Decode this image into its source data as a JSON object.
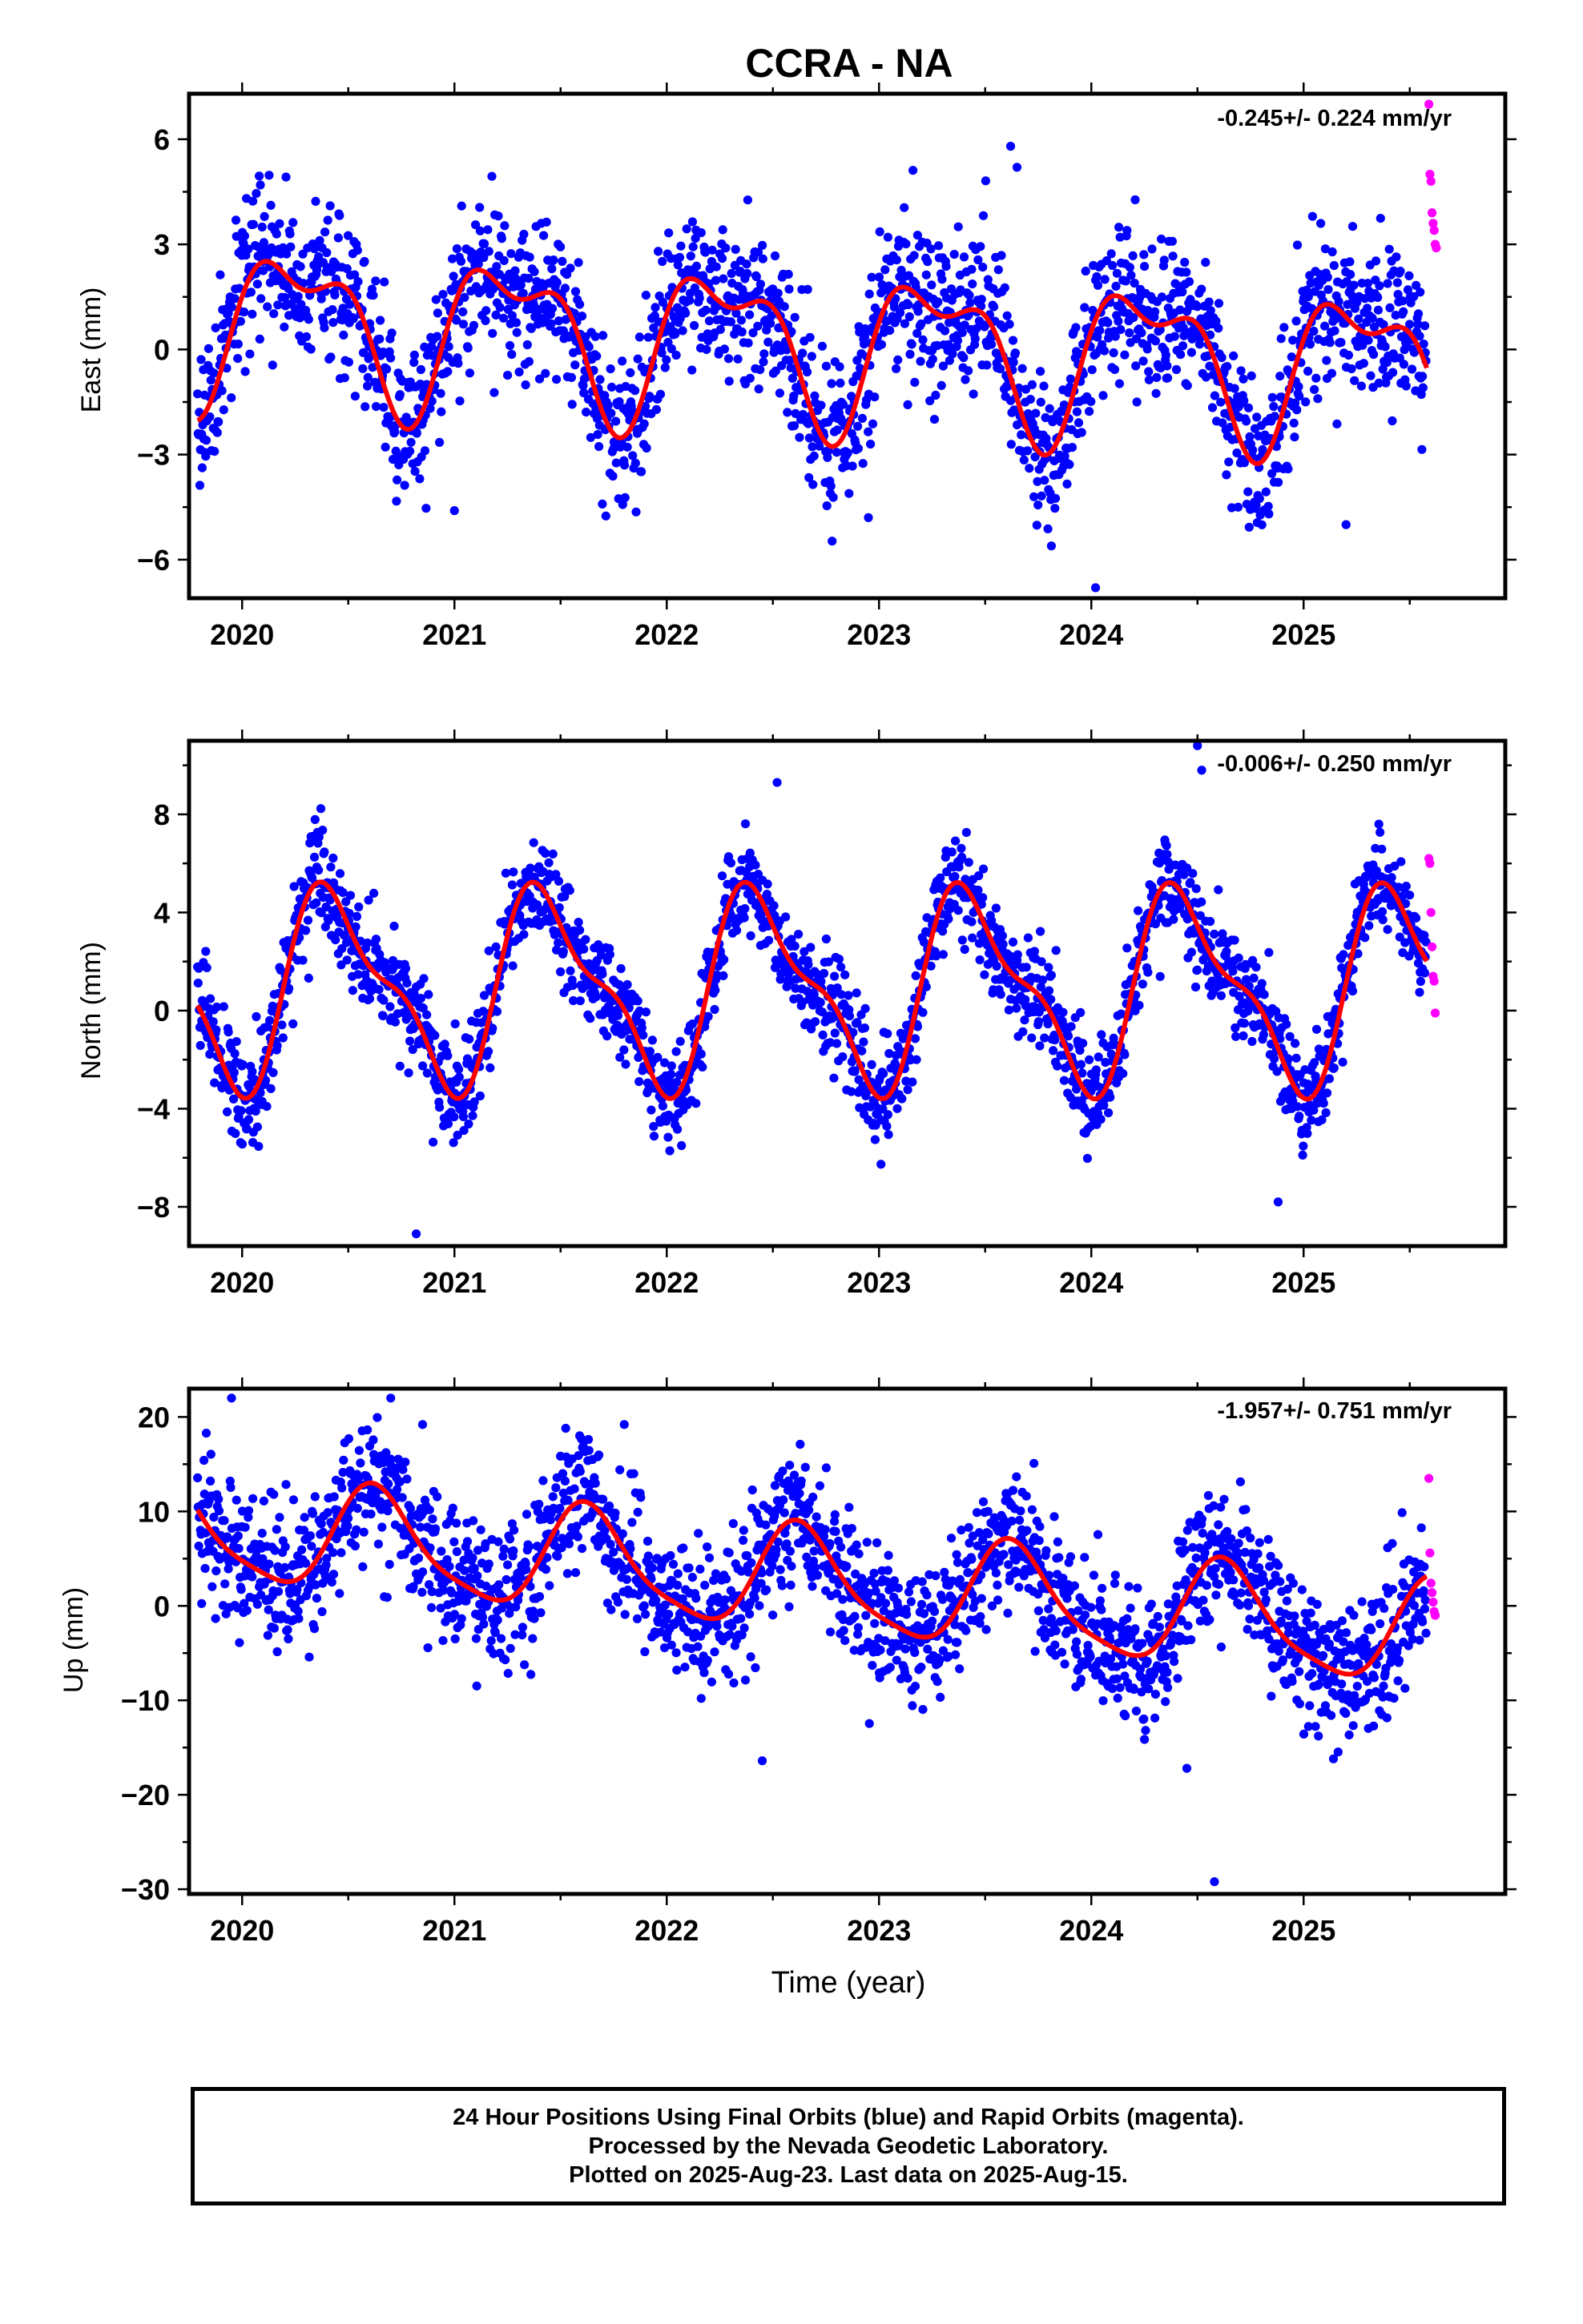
{
  "figure_title": "CCRA - NA",
  "xlabel": "Time (year)",
  "footer": {
    "line1": "24 Hour Positions Using Final Orbits (blue) and Rapid Orbits (magenta).",
    "line2": "Processed by the Nevada Geodetic Laboratory.",
    "line3": "Plotted on 2025-Aug-23. Last data on 2025-Aug-15."
  },
  "colors": {
    "final_points": "#0000ff",
    "rapid_points": "#ff00ff",
    "model": "#ff0000",
    "frame": "#000000"
  },
  "chart_data": [
    {
      "type": "scatter",
      "component": "East",
      "ylabel": "East (mm)",
      "rate_label": "-0.245+/- 0.224 mm/yr",
      "xlim": [
        2019.75,
        2025.95
      ],
      "ylim": [
        -7.1,
        7.3
      ],
      "xticks": [
        2020,
        2021,
        2022,
        2023,
        2024,
        2025
      ],
      "yticks": [
        -6,
        -3,
        0,
        3,
        6
      ],
      "yticks_labels": [
        "−6",
        "−3",
        "0",
        "3",
        "6"
      ],
      "data_span": [
        2019.79,
        2025.58
      ],
      "model": {
        "offset": 0.15,
        "trend": -0.245,
        "annual": [
          1.95,
          -0.15
        ],
        "semiannual": [
          0.45,
          0.85
        ]
      },
      "scatter_sigma": 1.05,
      "rapid": {
        "x": [
          2025.59,
          2025.595,
          2025.6,
          2025.605,
          2025.61,
          2025.615,
          2025.62,
          2025.625
        ],
        "y": [
          7.0,
          5.0,
          4.8,
          3.9,
          3.6,
          3.4,
          3.0,
          2.9
        ]
      },
      "outliers": {
        "x": [
          2023.62,
          2023.65,
          2024.02,
          2025.2,
          2021.0,
          2022.95
        ],
        "y": [
          5.8,
          5.2,
          -6.8,
          -5.0,
          -4.6,
          -4.8
        ]
      }
    },
    {
      "type": "scatter",
      "component": "North",
      "ylabel": "North (mm)",
      "rate_label": "-0.006+/- 0.250 mm/yr",
      "xlim": [
        2019.75,
        2025.95
      ],
      "ylim": [
        -9.6,
        11.0
      ],
      "xticks": [
        2020,
        2021,
        2022,
        2023,
        2024,
        2025
      ],
      "yticks": [
        -8,
        -4,
        0,
        4,
        8
      ],
      "yticks_labels": [
        "−8",
        "−4",
        "0",
        "4",
        "8"
      ],
      "data_span": [
        2019.79,
        2025.58
      ],
      "model": {
        "offset": 0.9,
        "trend": -0.006,
        "annual": [
          1.2,
          -3.5
        ],
        "semiannual": [
          -1.0,
          -0.95
        ]
      },
      "scatter_sigma": 1.0,
      "rapid": {
        "x": [
          2025.59,
          2025.595,
          2025.6,
          2025.605,
          2025.61,
          2025.615,
          2025.62
        ],
        "y": [
          6.2,
          6.0,
          4.0,
          2.6,
          1.4,
          1.2,
          -0.1
        ]
      },
      "outliers": {
        "x": [
          2020.82,
          2024.88,
          2024.5,
          2024.52,
          2022.52
        ],
        "y": [
          -9.1,
          -7.8,
          10.8,
          9.8,
          9.3
        ]
      }
    },
    {
      "type": "scatter",
      "component": "Up",
      "ylabel": "Up (mm)",
      "rate_label": "-1.957+/- 0.751 mm/yr",
      "xlim": [
        2019.75,
        2025.95
      ],
      "ylim": [
        -30.5,
        23.0
      ],
      "xticks": [
        2020,
        2021,
        2022,
        2023,
        2024,
        2025
      ],
      "yticks": [
        -30,
        -20,
        -10,
        0,
        10,
        20
      ],
      "yticks_labels": [
        "−30",
        "−20",
        "−10",
        "0",
        "10",
        "20"
      ],
      "data_span": [
        2019.79,
        2025.58
      ],
      "model": {
        "offset": 2.5,
        "trend": -1.957,
        "annual": [
          -4.0,
          -3.6
        ],
        "semiannual": [
          1.0,
          0.6
        ]
      },
      "scatter_sigma": 3.6,
      "rapid": {
        "x": [
          2025.59,
          2025.595,
          2025.6,
          2025.605,
          2025.61,
          2025.615,
          2025.62
        ],
        "y": [
          13.5,
          5.6,
          2.4,
          1.4,
          0.4,
          -0.6,
          -1.0
        ]
      },
      "outliers": {
        "x": [
          2024.58,
          2019.95,
          2020.7,
          2021.8,
          2020.85,
          2024.45,
          2022.45
        ],
        "y": [
          -29.2,
          22.0,
          22.0,
          19.2,
          19.2,
          -17.2,
          -16.4
        ]
      }
    }
  ]
}
